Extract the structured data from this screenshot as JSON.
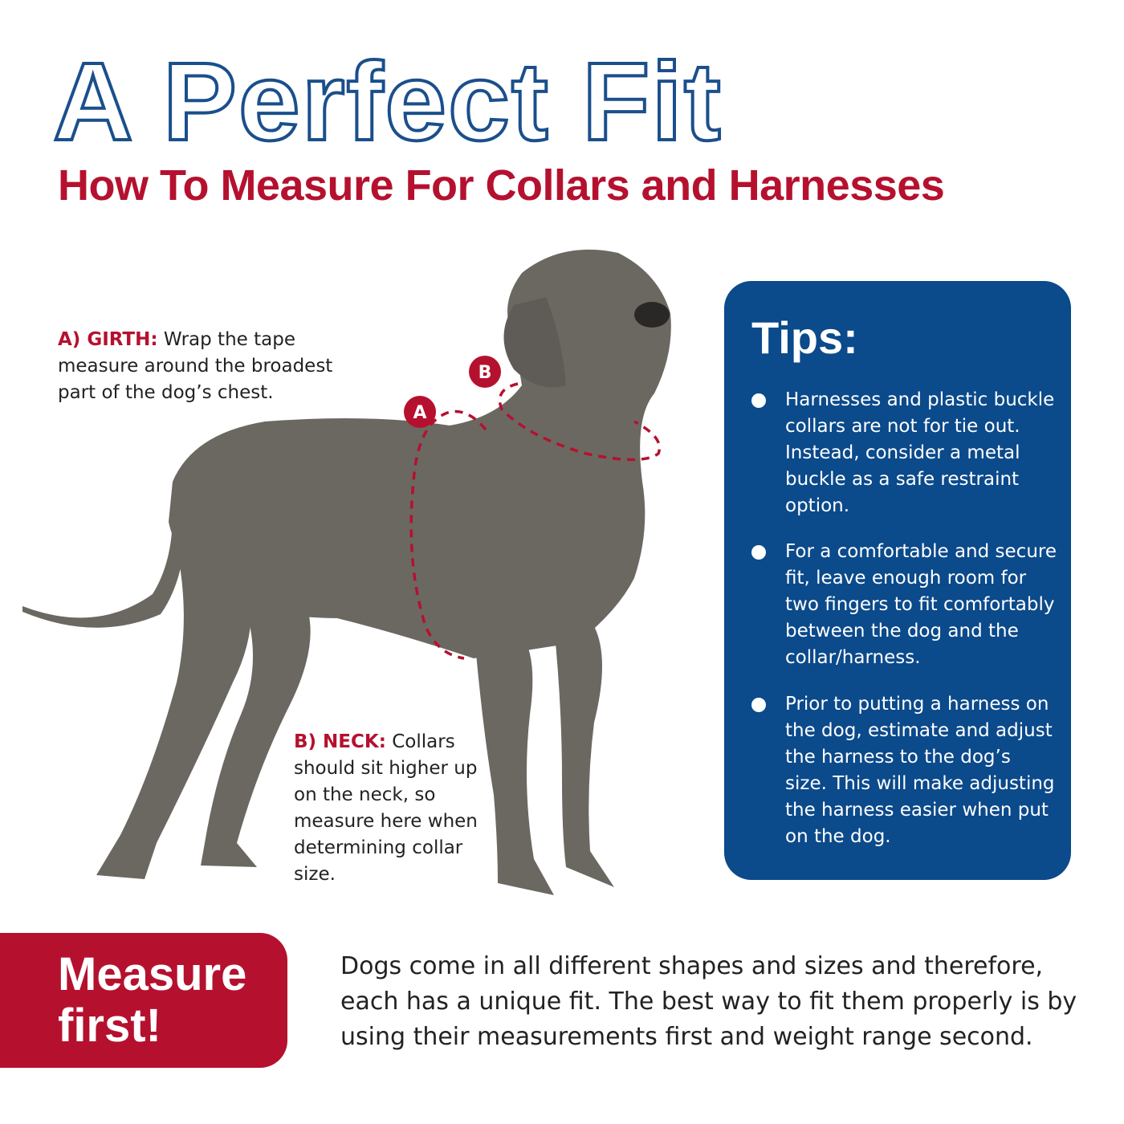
{
  "header": {
    "title": "A Perfect Fit",
    "subtitle": "How To Measure For Collars and Harnesses"
  },
  "measurements": {
    "girth": {
      "marker": "A",
      "label": "A) GIRTH:",
      "text": " Wrap the tape measure around the broadest part of the dog’s chest."
    },
    "neck": {
      "marker": "B",
      "label": "B) NECK:",
      "text": " Collars should sit higher up on the neck, so measure here when determining collar size."
    }
  },
  "tips": {
    "title": "Tips:",
    "items": [
      "Harnesses and plastic buckle collars are not for tie out. Instead, consider a metal buckle as a safe restraint option.",
      "For a comfortable and secure fit, leave enough room for two fingers to fit comfortably between the dog and the collar/harness.",
      "Prior to putting a harness on the dog, estimate and adjust the harness to the dog’s size. This will make adjusting the harness easier when put on the dog."
    ]
  },
  "footer": {
    "badge": "Measure first!",
    "text": "Dogs come in all different shapes and sizes and therefore, each has a unique fit. The best way to fit them properly is by using their measurements first and weight range second."
  },
  "colors": {
    "blue": "#0b4a8b",
    "red": "#b5112f",
    "dog": "#6b6862"
  }
}
